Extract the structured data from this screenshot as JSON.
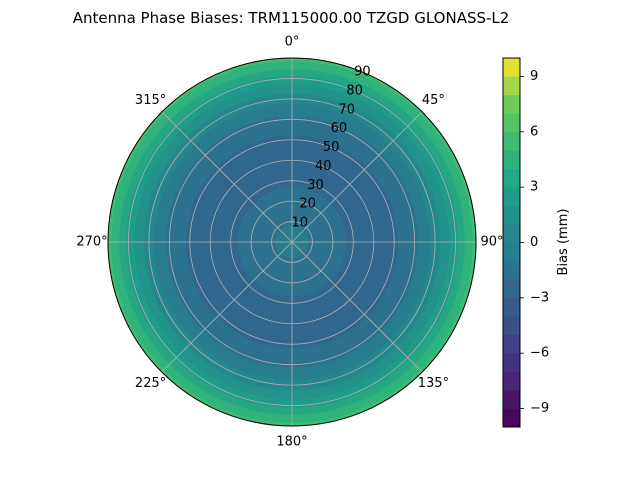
{
  "chart_data": {
    "type": "heatmap",
    "projection": "polar",
    "title": "Antenna Phase Biases: TRM115000.00    TZGD GLONASS-L2",
    "angular_tick_labels": [
      "0°",
      "45°",
      "90°",
      "135°",
      "180°",
      "225°",
      "270°",
      "315°"
    ],
    "angular_ticks_deg": [
      0,
      45,
      90,
      135,
      180,
      225,
      270,
      315
    ],
    "radial_tick_labels": [
      "10",
      "20",
      "30",
      "40",
      "50",
      "60",
      "70",
      "80",
      "90"
    ],
    "radial_ticks": [
      10,
      20,
      30,
      40,
      50,
      60,
      70,
      80,
      90
    ],
    "rlim": [
      0,
      90
    ],
    "grid": true,
    "colorbar": {
      "label": "Bias (mm)",
      "range": [
        -10,
        10
      ],
      "tick_labels": [
        "9",
        "6",
        "3",
        "0",
        "−3",
        "−6",
        "−9"
      ],
      "ticks": [
        9,
        6,
        3,
        0,
        -3,
        -6,
        -9
      ],
      "levels": 20,
      "colormap": "viridis"
    },
    "radial_profile": {
      "zenith_angle": [
        0,
        10,
        20,
        30,
        40,
        50,
        60,
        65,
        70,
        75,
        80,
        85,
        90
      ],
      "bias": [
        -0.5,
        -1.1,
        -1.6,
        -2.2,
        -2.4,
        -2.2,
        -1.3,
        -0.5,
        0.4,
        1.5,
        2.7,
        4.0,
        5.3
      ]
    }
  }
}
